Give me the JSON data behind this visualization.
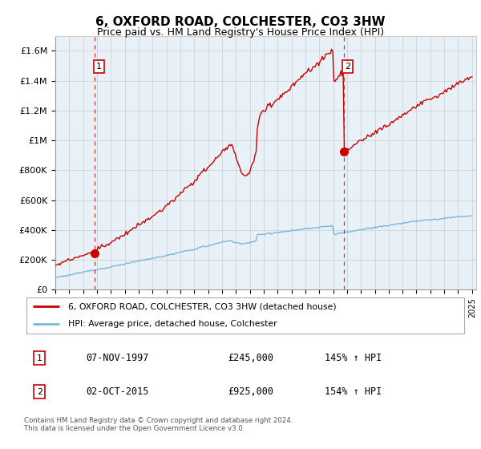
{
  "title": "6, OXFORD ROAD, COLCHESTER, CO3 3HW",
  "subtitle": "Price paid vs. HM Land Registry's House Price Index (HPI)",
  "ylim": [
    0,
    1700000
  ],
  "yticks": [
    0,
    200000,
    400000,
    600000,
    800000,
    1000000,
    1200000,
    1400000,
    1600000
  ],
  "ytick_labels": [
    "£0",
    "£200K",
    "£400K",
    "£600K",
    "£800K",
    "£1M",
    "£1.2M",
    "£1.4M",
    "£1.6M"
  ],
  "xlim_start": 1995.0,
  "xlim_end": 2025.3,
  "xticks": [
    1995,
    1996,
    1997,
    1998,
    1999,
    2000,
    2001,
    2002,
    2003,
    2004,
    2005,
    2006,
    2007,
    2008,
    2009,
    2010,
    2011,
    2012,
    2013,
    2014,
    2015,
    2016,
    2017,
    2018,
    2019,
    2020,
    2021,
    2022,
    2023,
    2024,
    2025
  ],
  "sale1_x": 1997.85,
  "sale1_y": 245000,
  "sale1_label": "1",
  "sale2_x": 2015.75,
  "sale2_y": 925000,
  "sale2_label": "2",
  "hpi_line_color": "#7ab8d9",
  "price_line_color": "#cc0000",
  "marker_color": "#cc0000",
  "vline_color": "#cc0000",
  "grid_color": "#cccccc",
  "background_color": "#ffffff",
  "chart_bg_color": "#e8f0f8",
  "legend_label_red": "6, OXFORD ROAD, COLCHESTER, CO3 3HW (detached house)",
  "legend_label_blue": "HPI: Average price, detached house, Colchester",
  "table_row1": [
    "1",
    "07-NOV-1997",
    "£245,000",
    "145% ↑ HPI"
  ],
  "table_row2": [
    "2",
    "02-OCT-2015",
    "£925,000",
    "154% ↑ HPI"
  ],
  "footnote": "Contains HM Land Registry data © Crown copyright and database right 2024.\nThis data is licensed under the Open Government Licence v3.0.",
  "title_fontsize": 11,
  "subtitle_fontsize": 9
}
